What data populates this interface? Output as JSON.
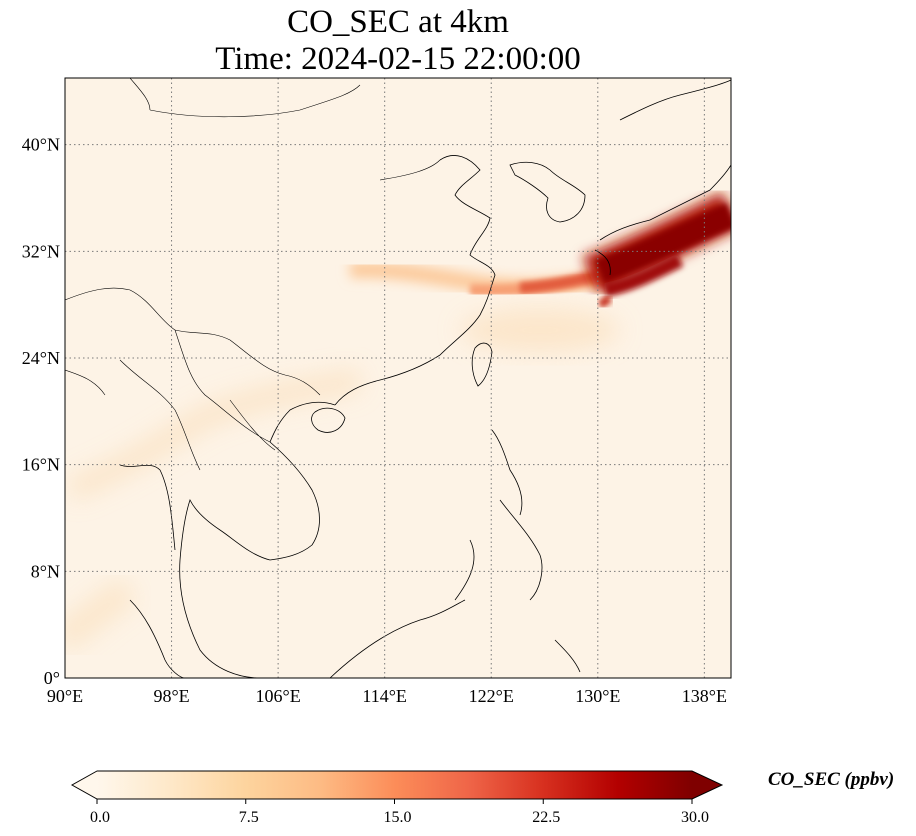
{
  "title": {
    "line1": "CO_SEC at 4km",
    "line2": "Time: 2024-02-15 22:00:00"
  },
  "map": {
    "projection": "PlateCarree",
    "lon_range": [
      90,
      140
    ],
    "lat_range": [
      0,
      45
    ],
    "gridlines": true,
    "coastlines": true,
    "borders": true,
    "lon_ticks": [
      {
        "value": 90,
        "label": "90°E"
      },
      {
        "value": 98,
        "label": "98°E"
      },
      {
        "value": 106,
        "label": "106°E"
      },
      {
        "value": 114,
        "label": "114°E"
      },
      {
        "value": 122,
        "label": "122°E"
      },
      {
        "value": 130,
        "label": "130°E"
      },
      {
        "value": 138,
        "label": "138°E"
      }
    ],
    "lat_ticks": [
      {
        "value": 0,
        "label": "0°"
      },
      {
        "value": 8,
        "label": "8°N"
      },
      {
        "value": 16,
        "label": "16°N"
      },
      {
        "value": 24,
        "label": "24°N"
      },
      {
        "value": 32,
        "label": "32°N"
      },
      {
        "value": 40,
        "label": "40°N"
      }
    ]
  },
  "colorbar": {
    "title": "CO_SEC (ppbv)",
    "min": 0.0,
    "max": 30.0,
    "extend": "both",
    "colormap": "OrRd",
    "colors": [
      "#fff7ec",
      "#fee8c8",
      "#fdd49e",
      "#fdbb84",
      "#fc8d59",
      "#ef6548",
      "#d7301f",
      "#b30000",
      "#7f0000"
    ],
    "ticks": [
      {
        "value": 0.0,
        "label": "0.0"
      },
      {
        "value": 7.5,
        "label": "7.5"
      },
      {
        "value": 15.0,
        "label": "15.0"
      },
      {
        "value": 22.5,
        "label": "22.5"
      },
      {
        "value": 30.0,
        "label": "30.0"
      }
    ]
  },
  "colors": {
    "background_field": "#fdf3e6",
    "plume_core": "#7f0000",
    "coastline": "#000000",
    "gridline": "#7a7a7a"
  }
}
